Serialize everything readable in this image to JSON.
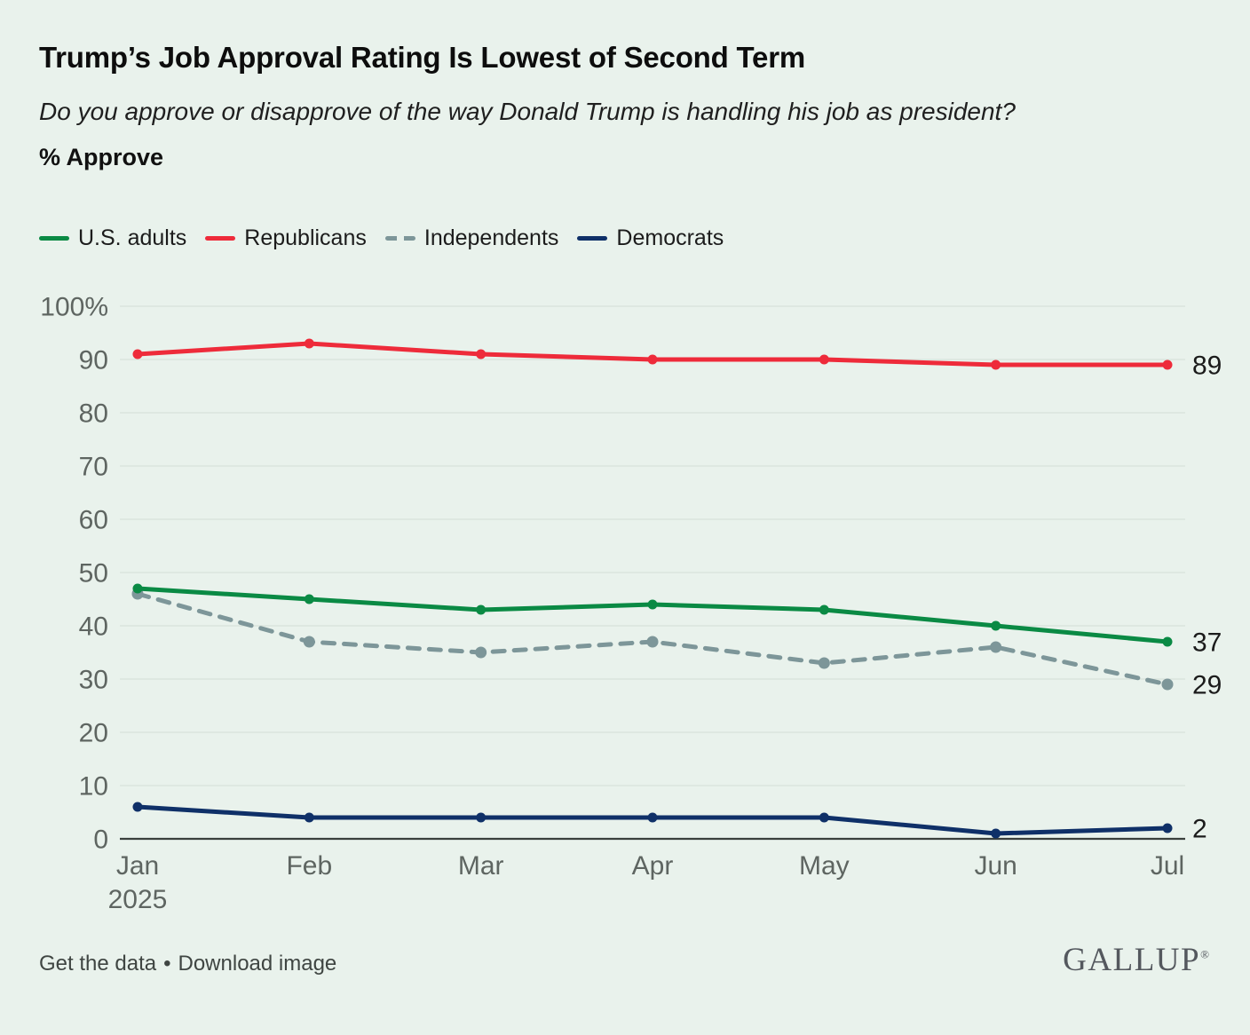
{
  "header": {
    "title": "Trump’s Job Approval Rating Is Lowest of Second Term",
    "subtitle": "Do you approve or disapprove of the way Donald Trump is handling his job as president?",
    "measure_label": "% Approve"
  },
  "legend": {
    "items": [
      {
        "label": "U.S. adults",
        "color": "#0a8a44",
        "style": "solid"
      },
      {
        "label": "Republicans",
        "color": "#ee2b3a",
        "style": "solid"
      },
      {
        "label": "Independents",
        "color": "#7d9699",
        "style": "dashed"
      },
      {
        "label": "Democrats",
        "color": "#0f3068",
        "style": "solid"
      }
    ]
  },
  "chart_data": {
    "type": "line",
    "x": [
      "Jan",
      "Feb",
      "Mar",
      "Apr",
      "May",
      "Jun",
      "Jul"
    ],
    "x_year_label": "2025",
    "series": [
      {
        "name": "U.S. adults",
        "color": "#0a8a44",
        "dash": false,
        "values": [
          47,
          45,
          43,
          44,
          43,
          40,
          37
        ],
        "end_label": "37"
      },
      {
        "name": "Republicans",
        "color": "#ee2b3a",
        "dash": false,
        "values": [
          91,
          93,
          91,
          90,
          90,
          89,
          89
        ],
        "end_label": "89"
      },
      {
        "name": "Independents",
        "color": "#7d9699",
        "dash": true,
        "values": [
          46,
          37,
          35,
          37,
          33,
          36,
          29
        ],
        "end_label": "29"
      },
      {
        "name": "Democrats",
        "color": "#0f3068",
        "dash": false,
        "values": [
          6,
          4,
          4,
          4,
          4,
          1,
          2
        ],
        "end_label": "2"
      }
    ],
    "ylim": [
      0,
      100
    ],
    "y_ticks": [
      0,
      10,
      20,
      30,
      40,
      50,
      60,
      70,
      80,
      90,
      100
    ],
    "y_tick_labels": [
      "0",
      "10",
      "20",
      "30",
      "40",
      "50",
      "60",
      "70",
      "80",
      "90",
      "100%"
    ],
    "grid": true,
    "legend_position": "top"
  },
  "footer": {
    "get_data_label": "Get the data",
    "separator": "•",
    "download_label": "Download image",
    "logo_text": "GALLUP",
    "registered_mark": "®"
  },
  "colors": {
    "background": "#e9f2ec",
    "gridline": "#d8e1da",
    "axis_line": "#3a3f3c",
    "tick_text": "#5e6561",
    "end_label_text": "#1b1b1b"
  }
}
